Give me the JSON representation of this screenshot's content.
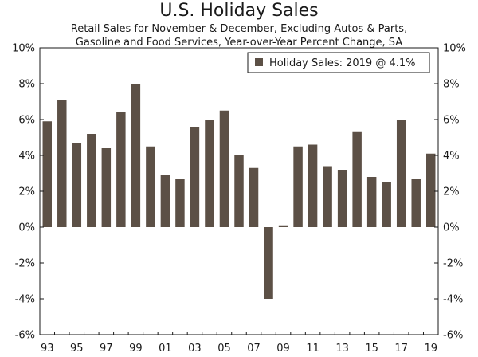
{
  "chart_data": {
    "type": "bar",
    "title": "U.S. Holiday Sales",
    "subtitle_line1": "Retail Sales for November & December, Excluding Autos & Parts,",
    "subtitle_line2": "Gasoline and Food Services, Year-over-Year Percent Change, SA",
    "categories": [
      "1993",
      "1994",
      "1995",
      "1996",
      "1997",
      "1998",
      "1999",
      "2000",
      "2001",
      "2002",
      "2003",
      "2004",
      "2005",
      "2006",
      "2007",
      "2008",
      "2009",
      "2010",
      "2011",
      "2012",
      "2013",
      "2014",
      "2015",
      "2016",
      "2017",
      "2018",
      "2019"
    ],
    "values": [
      5.9,
      7.1,
      4.7,
      5.2,
      4.4,
      6.4,
      8.0,
      4.5,
      2.9,
      2.7,
      5.6,
      6.0,
      6.5,
      4.0,
      3.3,
      -4.0,
      0.1,
      4.5,
      4.6,
      3.4,
      3.2,
      5.3,
      2.8,
      2.5,
      6.0,
      2.7,
      4.1
    ],
    "x_tick_labels": [
      "93",
      "95",
      "97",
      "99",
      "01",
      "03",
      "05",
      "07",
      "09",
      "11",
      "13",
      "15",
      "17",
      "19"
    ],
    "x_tick_every": 2,
    "ylim": [
      -6,
      10
    ],
    "y_ticks": [
      -6,
      -4,
      -2,
      0,
      2,
      4,
      6,
      8,
      10
    ],
    "y_tick_suffix": "%",
    "legend": "Holiday Sales: 2019 @ 4.1%",
    "legend_position": "top-right",
    "bar_color": "#5c5046",
    "xlabel": "",
    "ylabel": ""
  }
}
